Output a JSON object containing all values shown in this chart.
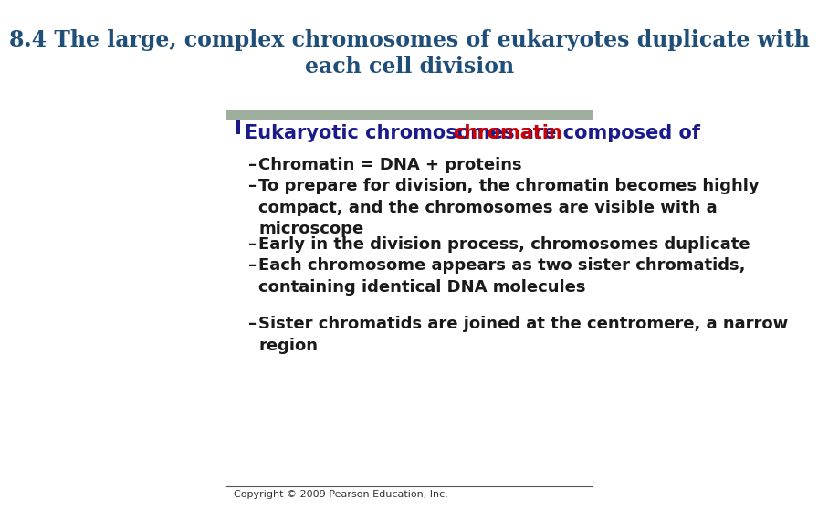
{
  "title_line1": "8.4 The large, complex chromosomes of eukaryotes duplicate with",
  "title_line2": "each cell division",
  "title_color": "#1F4E79",
  "title_fontsize": 17,
  "bg_color": "#FFFFFF",
  "header_bar_color": "#9EAF9E",
  "bullet_text": "Eukaryotic chromosomes are composed of ",
  "bullet_highlight": "chromatin",
  "bullet_color": "#1a1a8c",
  "bullet_highlight_color": "#CC0000",
  "bullet_fontsize": 15,
  "sub_bullets": [
    "Chromatin = DNA + proteins",
    "To prepare for division, the chromatin becomes highly\ncompact, and the chromosomes are visible with a\nmicroscope",
    "Early in the division process, chromosomes duplicate",
    "Each chromosome appears as two sister chromatids,\ncontaining identical DNA molecules"
  ],
  "sub_bullet2": "Sister chromatids are joined at the centromere, a narrow\nregion",
  "sub_bullet_color": "#1a1a1a",
  "sub_bullet_fontsize": 13,
  "copyright": "Copyright © 2009 Pearson Education, Inc.",
  "copyright_fontsize": 8,
  "footer_line_color": "#555555"
}
